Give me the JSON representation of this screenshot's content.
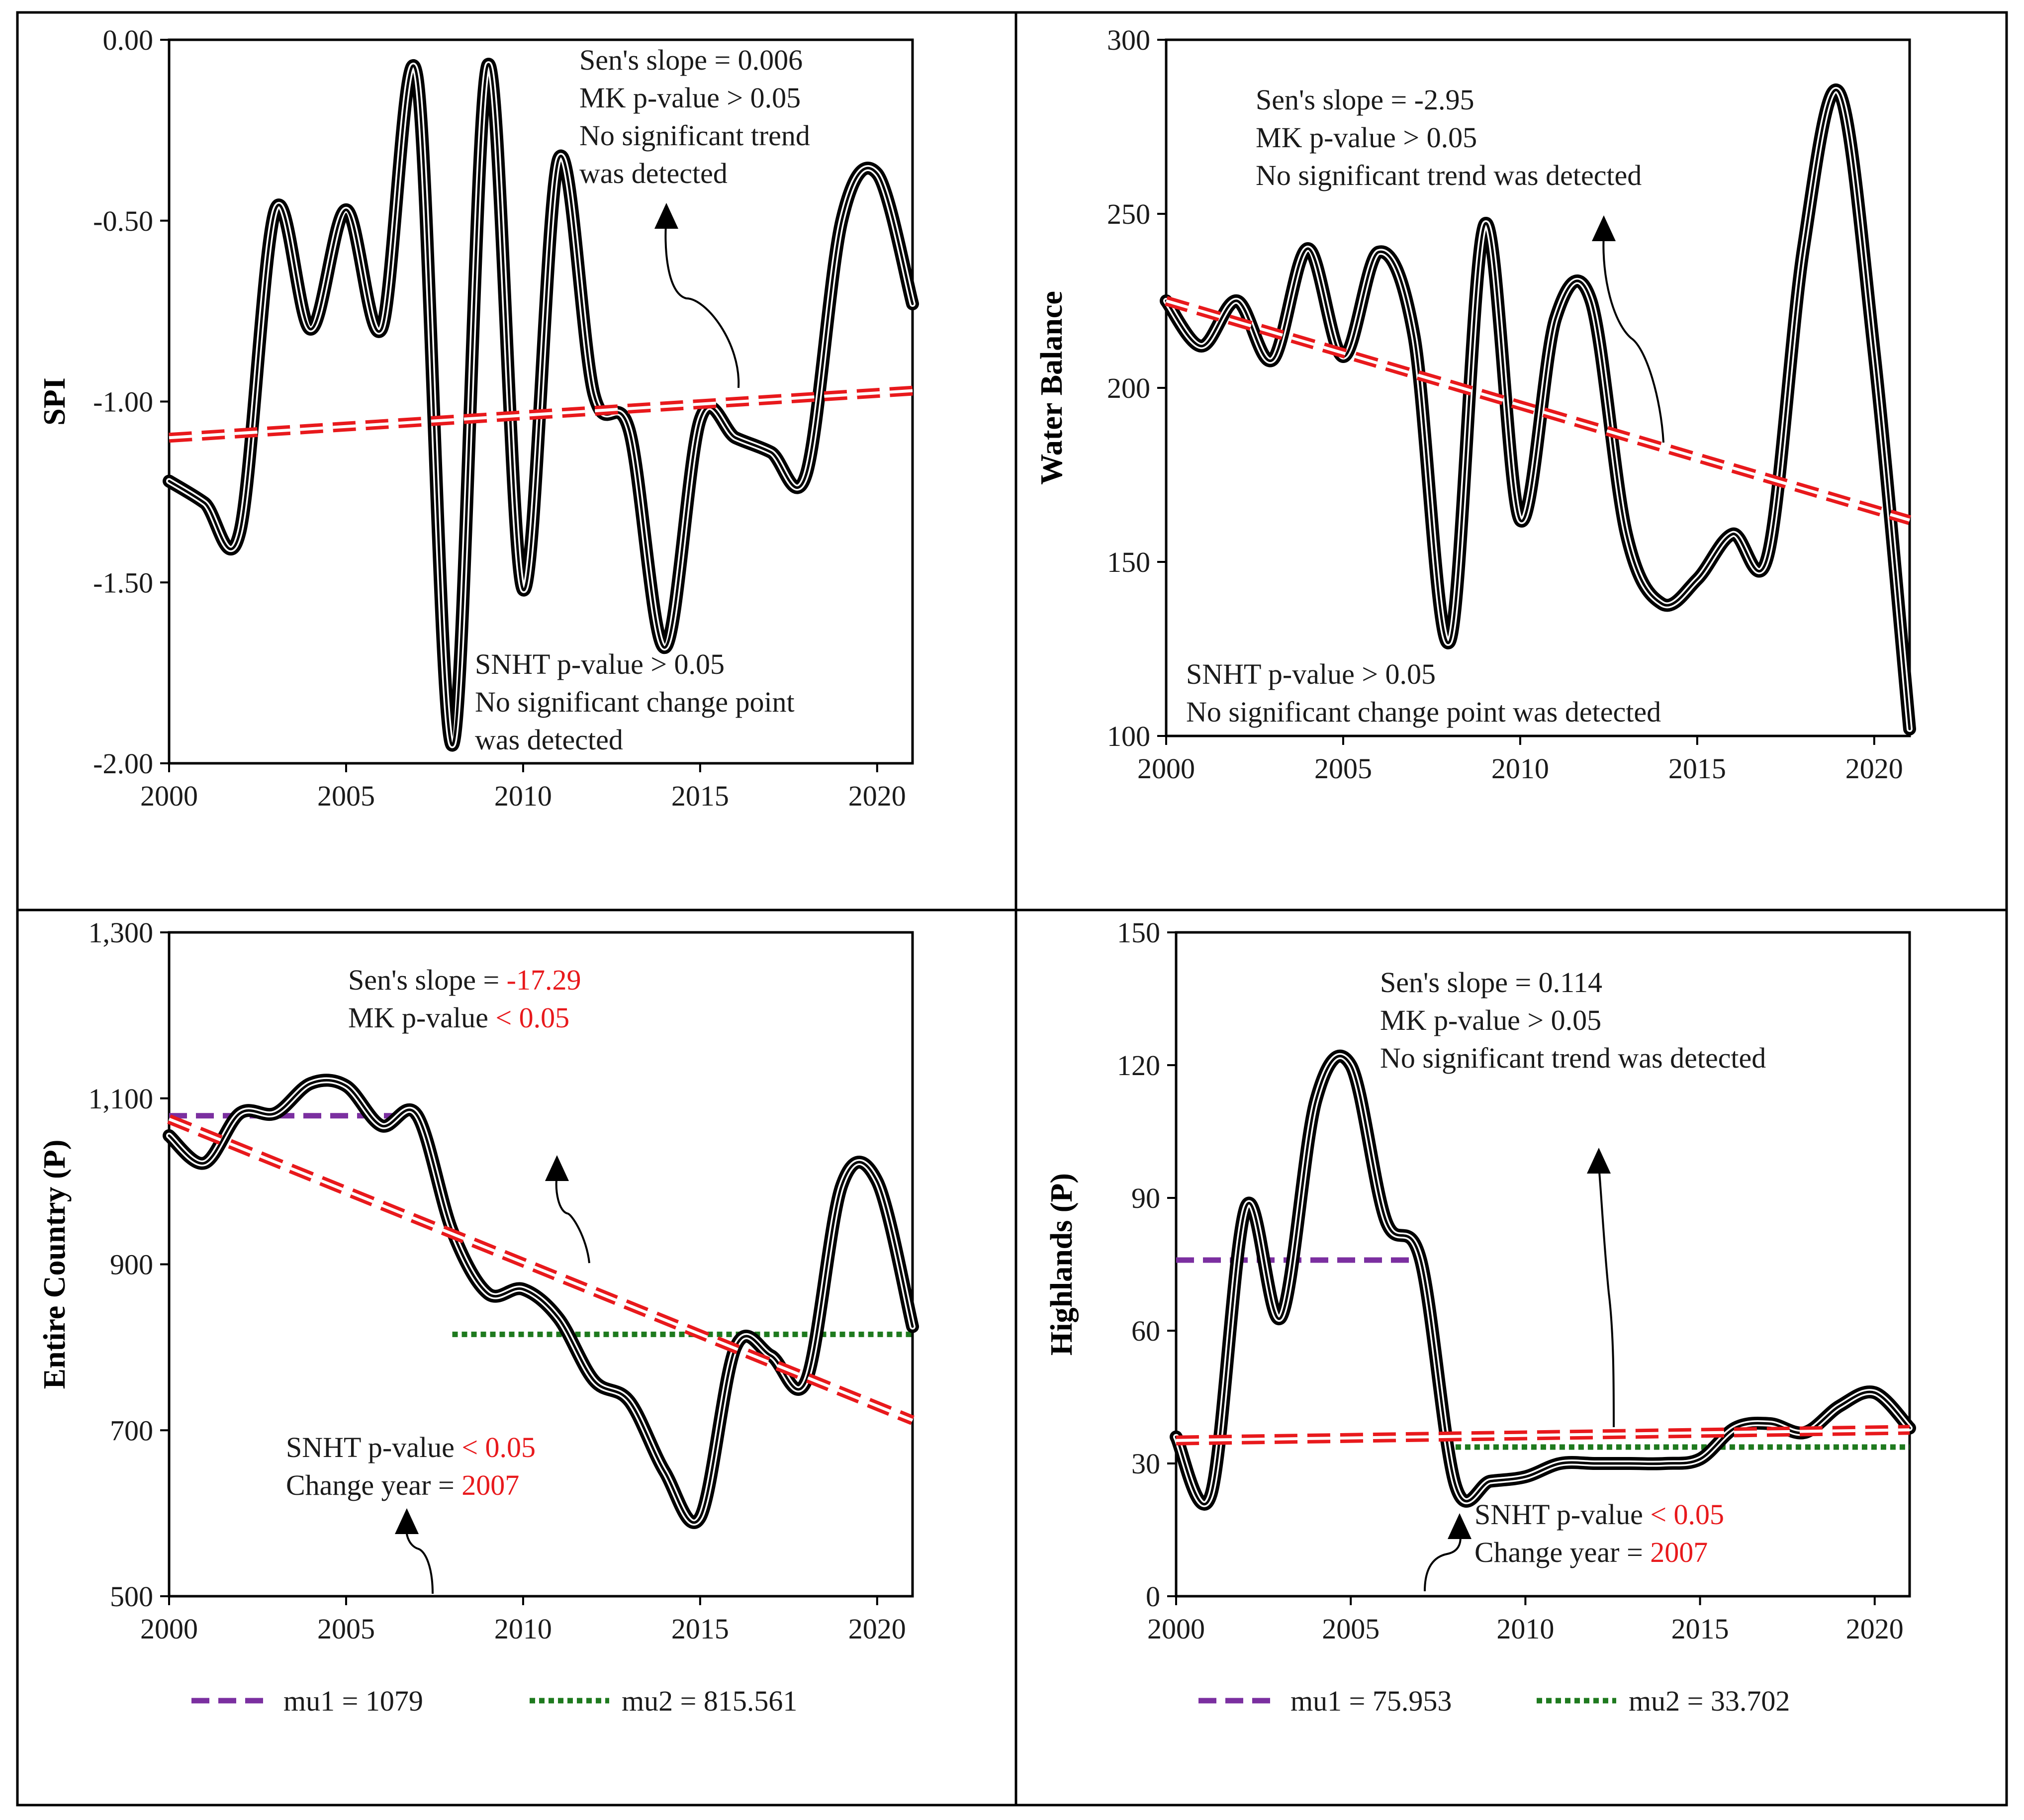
{
  "colors": {
    "series": "#000000",
    "trend": "#e8191c",
    "mu1": "#7b2fa0",
    "mu2": "#1e7a1e",
    "highlight": "#e8191c",
    "text": "#1a1a1a"
  },
  "chart_data": [
    {
      "type": "line",
      "ylabel": "SPI",
      "xlim": [
        2000,
        2021
      ],
      "ylim": [
        -2.0,
        0.0
      ],
      "xticks": [
        2000,
        2005,
        2010,
        2015,
        2020
      ],
      "xtick_labels": [
        "2000",
        "2005",
        "2010",
        "2015",
        "2020"
      ],
      "yticks": [
        0.0,
        -0.5,
        -1.0,
        -1.5,
        -2.0
      ],
      "ytick_labels": [
        "0.00",
        "-0.50",
        "-1.00",
        "-1.50",
        "-2.00"
      ],
      "x": [
        2000,
        2001,
        2002,
        2003,
        2004,
        2005,
        2006,
        2007,
        2008,
        2009,
        2010,
        2011,
        2012,
        2013,
        2014,
        2015,
        2016,
        2017,
        2018,
        2019,
        2020,
        2021
      ],
      "values": [
        -1.22,
        -1.28,
        -1.36,
        -0.47,
        -0.8,
        -0.47,
        -0.8,
        -0.1,
        -1.95,
        -0.07,
        -1.52,
        -0.33,
        -0.98,
        -1.08,
        -1.68,
        -1.05,
        -1.1,
        -1.14,
        -1.2,
        -0.5,
        -0.37,
        -0.73
      ],
      "trend": [
        [
          2000,
          -1.1
        ],
        [
          2021,
          -0.97
        ]
      ],
      "annotations": [
        {
          "lines": [
            "Sen's slope = 0.006",
            "MK p-value > 0.05",
            "No significant trend",
            "was detected"
          ]
        },
        {
          "lines": [
            "SNHT p-value > 0.05",
            "No significant change point",
            "was detected"
          ]
        }
      ]
    },
    {
      "type": "line",
      "ylabel": "Water Balance",
      "xlim": [
        2000,
        2021
      ],
      "ylim": [
        100,
        300
      ],
      "xticks": [
        2000,
        2005,
        2010,
        2015,
        2020
      ],
      "xtick_labels": [
        "2000",
        "2005",
        "2010",
        "2015",
        "2020"
      ],
      "yticks": [
        100,
        150,
        200,
        250,
        300
      ],
      "ytick_labels": [
        "100",
        "150",
        "200",
        "250",
        "300"
      ],
      "x": [
        2000,
        2001,
        2002,
        2003,
        2004,
        2005,
        2006,
        2007,
        2008,
        2009,
        2010,
        2011,
        2012,
        2013,
        2014,
        2015,
        2016,
        2017,
        2018,
        2019,
        2020,
        2021
      ],
      "values": [
        225,
        212,
        225,
        208,
        240,
        209,
        239,
        215,
        127,
        247,
        162,
        220,
        225,
        158,
        138,
        145,
        158,
        152,
        240,
        285,
        210,
        102
      ],
      "trend": [
        [
          2000,
          225
        ],
        [
          2021,
          162
        ]
      ],
      "annotations": [
        {
          "lines": [
            "Sen's slope = -2.95",
            "MK p-value > 0.05",
            "No significant trend was detected"
          ]
        },
        {
          "lines": [
            "SNHT p-value > 0.05",
            "No significant change point was detected"
          ]
        }
      ]
    },
    {
      "type": "line",
      "ylabel": "Entire Country (P)",
      "xlim": [
        2000,
        2021
      ],
      "ylim": [
        500,
        1300
      ],
      "xticks": [
        2000,
        2005,
        2010,
        2015,
        2020
      ],
      "xtick_labels": [
        "2000",
        "2005",
        "2010",
        "2015",
        "2020"
      ],
      "yticks": [
        500,
        700,
        900,
        1100,
        1300
      ],
      "ytick_labels": [
        "500",
        "700",
        "900",
        "1,100",
        "1,300"
      ],
      "x": [
        2000,
        2001,
        2002,
        2003,
        2004,
        2005,
        2006,
        2007,
        2008,
        2009,
        2010,
        2011,
        2012,
        2013,
        2014,
        2015,
        2016,
        2017,
        2018,
        2019,
        2020,
        2021
      ],
      "values": [
        1055,
        1022,
        1082,
        1082,
        1118,
        1115,
        1067,
        1080,
        940,
        865,
        870,
        835,
        760,
        735,
        650,
        595,
        800,
        790,
        760,
        995,
        1000,
        825
      ],
      "trend": [
        [
          2000,
          1075
        ],
        [
          2021,
          712
        ]
      ],
      "mu1": {
        "value": 1079,
        "x_range": [
          2000,
          2007
        ]
      },
      "mu2": {
        "value": 815.561,
        "x_range": [
          2008,
          2021
        ]
      },
      "legend": [
        {
          "label": "mu1 = 1079",
          "style": "dashed"
        },
        {
          "label": "mu2 = 815.561",
          "style": "dotted"
        }
      ],
      "annotations": [
        {
          "lines": [
            {
              "plain": "Sen's slope = ",
              "red": "-17.29"
            },
            {
              "plain": "MK p-value ",
              "red": "< 0.05"
            }
          ]
        },
        {
          "lines": [
            {
              "plain": "SNHT p-value ",
              "red": "< 0.05"
            },
            {
              "plain": "Change year = ",
              "red": "2007"
            }
          ]
        }
      ]
    },
    {
      "type": "line",
      "ylabel": "Highlands (P)",
      "xlim": [
        2000,
        2021
      ],
      "ylim": [
        0,
        150
      ],
      "xticks": [
        2000,
        2005,
        2010,
        2015,
        2020
      ],
      "xtick_labels": [
        "2000",
        "2005",
        "2010",
        "2015",
        "2020"
      ],
      "yticks": [
        0,
        30,
        60,
        90,
        120,
        150
      ],
      "ytick_labels": [
        "0",
        "30",
        "60",
        "90",
        "120",
        "150"
      ],
      "x": [
        2000,
        2001,
        2002,
        2003,
        2004,
        2005,
        2006,
        2007,
        2008,
        2009,
        2010,
        2011,
        2012,
        2013,
        2014,
        2015,
        2016,
        2017,
        2018,
        2019,
        2020,
        2021
      ],
      "values": [
        36,
        23,
        88,
        63,
        112,
        120,
        85,
        76,
        25,
        26,
        27,
        30,
        30,
        30,
        30,
        31,
        38,
        39,
        37,
        43,
        46,
        38
      ],
      "trend": [
        [
          2000,
          35.2
        ],
        [
          2021,
          37.6
        ]
      ],
      "mu1": {
        "value": 75.953,
        "x_range": [
          2000,
          2007
        ]
      },
      "mu2": {
        "value": 33.702,
        "x_range": [
          2008,
          2021
        ]
      },
      "legend": [
        {
          "label": "mu1 = 75.953",
          "style": "dashed"
        },
        {
          "label": "mu2 = 33.702",
          "style": "dotted"
        }
      ],
      "annotations": [
        {
          "lines": [
            {
              "plain": "Sen's slope = 0.114",
              "red": ""
            },
            {
              "plain": "MK p-value > 0.05",
              "red": ""
            },
            {
              "plain": "No significant trend was detected",
              "red": ""
            }
          ]
        },
        {
          "lines": [
            {
              "plain": "SNHT p-value ",
              "red": "< 0.05"
            },
            {
              "plain": "Change year = ",
              "red": "2007"
            }
          ]
        }
      ]
    }
  ]
}
